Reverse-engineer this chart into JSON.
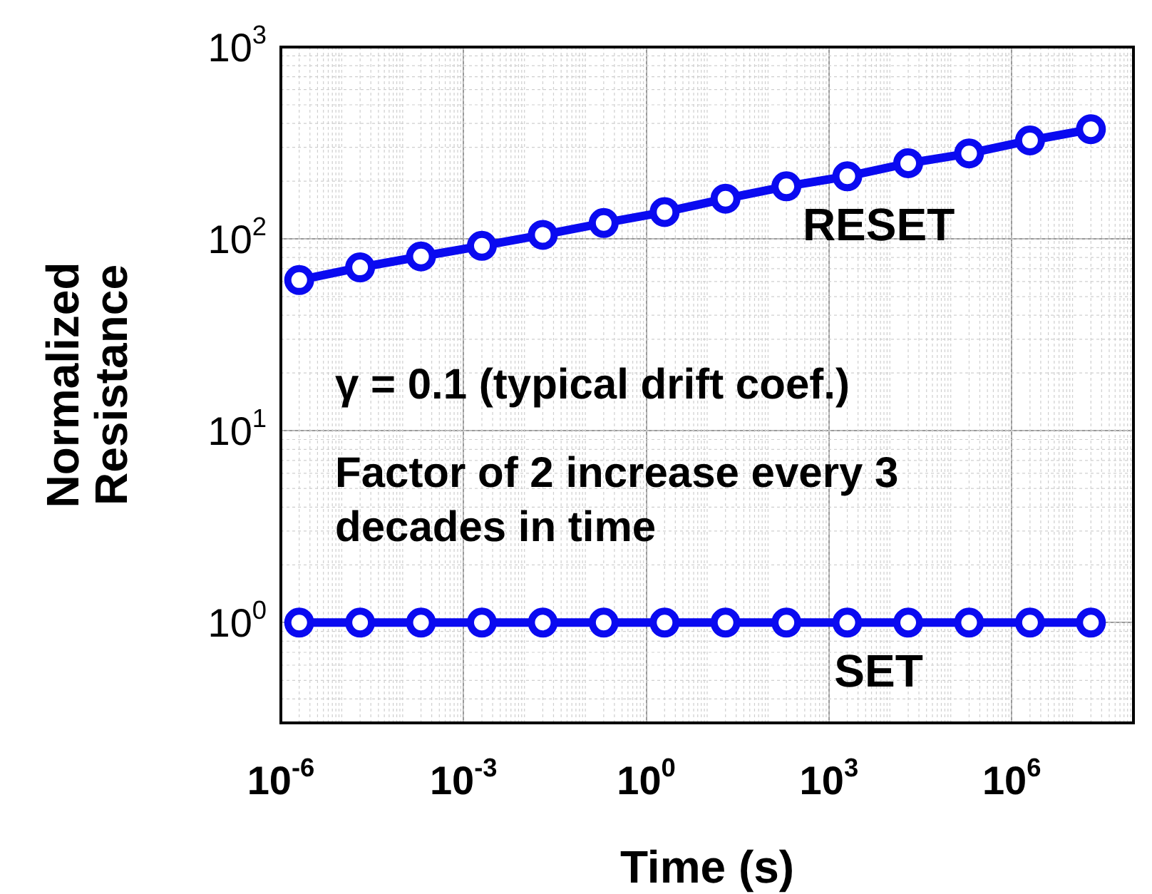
{
  "chart_data": {
    "type": "line",
    "xlabel": "Time (s)",
    "ylabel": "Normalized Resistance",
    "x": [
      2e-06,
      2e-05,
      0.0002,
      0.002,
      0.02,
      0.2,
      2,
      20,
      200,
      2000,
      20000,
      200000,
      2000000,
      20000000
    ],
    "series": [
      {
        "name": "RESET",
        "color": "#0a0af0",
        "values": [
          61,
          71,
          81,
          92,
          105,
          121,
          138,
          162,
          188,
          212,
          248,
          279,
          326,
          373
        ]
      },
      {
        "name": "SET",
        "color": "#0a0af0",
        "values": [
          1,
          1,
          1,
          1,
          1,
          1,
          1,
          1,
          1,
          1,
          1,
          1,
          1,
          1
        ]
      }
    ],
    "log": "xy",
    "xlim": [
      1e-06,
      100000000.0
    ],
    "ylim": [
      0.3,
      1000
    ],
    "xticks": [
      {
        "value": 1e-06,
        "label": "10$^{-6}$"
      },
      {
        "value": 0.001,
        "label": "10$^{-3}$"
      },
      {
        "value": 1,
        "label": "10$^{0}$"
      },
      {
        "value": 1000,
        "label": "10$^{3}$"
      },
      {
        "value": 1000000,
        "label": "10$^{6}$"
      }
    ],
    "yticks": [
      {
        "value": 1,
        "label": "10$^{0}$"
      },
      {
        "value": 10,
        "label": "10$^{1}$"
      },
      {
        "value": 100,
        "label": "10$^{2}$"
      },
      {
        "value": 1000,
        "label": "10$^{3}$"
      }
    ],
    "grid": true,
    "legend": false,
    "marker": "circle",
    "line_style": "solid",
    "annotations": [
      "γ = 0.1 (typical drift coef.)",
      "Factor of 2 increase every 3 decades in time"
    ]
  }
}
